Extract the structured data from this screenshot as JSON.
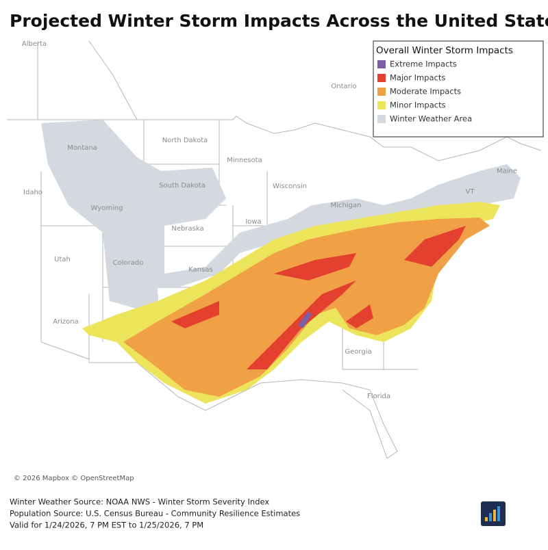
{
  "header": {
    "title": "Projected Winter Storm Impacts Across the United States"
  },
  "legend": {
    "title": "Overall Winter Storm Impacts",
    "items": [
      {
        "label": "Extreme Impacts",
        "color": "#7b5ea7"
      },
      {
        "label": "Major Impacts",
        "color": "#e4402f"
      },
      {
        "label": "Moderate Impacts",
        "color": "#f0a045"
      },
      {
        "label": "Minor Impacts",
        "color": "#ece55c"
      },
      {
        "label": "Winter Weather Area",
        "color": "#d4d8df"
      }
    ]
  },
  "map": {
    "labels": [
      "Alberta",
      "Ontario",
      "Montana",
      "North Dakota",
      "Minnesota",
      "Wisconsin",
      "Michigan",
      "Idaho",
      "Wyoming",
      "South Dakota",
      "Nebraska",
      "Iowa",
      "Utah",
      "Colorado",
      "Kansas",
      "Arizona",
      "Georgia",
      "Florida",
      "Maine",
      "VT"
    ],
    "attribution": "© 2026 Mapbox © OpenStreetMap"
  },
  "footer": {
    "lines": [
      "Winter Weather Source: NOAA NWS - Winter Storm Severity Index",
      "Population Source: U.S. Census Bureau - Community Resilience Estimates",
      "Valid for 1/24/2026, 7 PM EST to  1/25/2026, 7 PM"
    ]
  }
}
